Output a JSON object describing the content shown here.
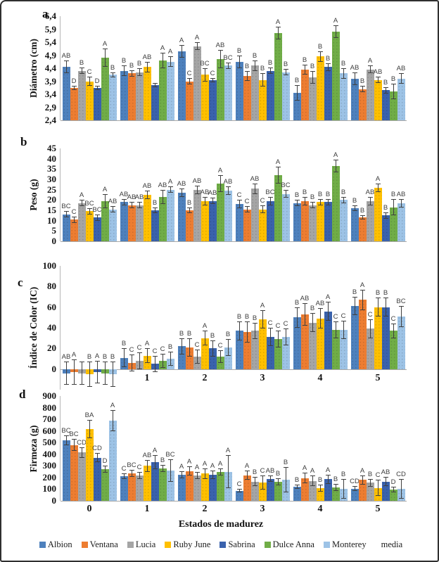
{
  "figure": {
    "xlabel": "Estados de madurez",
    "legend": {
      "items": [
        {
          "label": "Albion",
          "color": "#4e81bd"
        },
        {
          "label": "Ventana",
          "color": "#ed7d31"
        },
        {
          "label": "Lucia",
          "color": "#a5a5a5"
        },
        {
          "label": "Ruby June",
          "color": "#ffc000"
        },
        {
          "label": "Sabrina",
          "color": "#3a62ad"
        },
        {
          "label": "Dulce Anna",
          "color": "#70ad47"
        },
        {
          "label": "Monterey",
          "color": "#9dc3e6"
        },
        {
          "label": "media",
          "color": ""
        }
      ]
    }
  },
  "chart_data": [
    {
      "type": "bar",
      "panel": "a",
      "ylabel": "Diámetro (cm)",
      "ylim": [
        2.4,
        6.4
      ],
      "ytick_values": [
        6.4,
        5.9,
        5.4,
        4.9,
        4.4,
        3.9,
        3.4,
        2.9,
        2.4
      ],
      "ytick_labels": [
        "6,4",
        "5,9",
        "5,4",
        "4,9",
        "4,4",
        "3,9",
        "3,4",
        "2,9",
        "2,4"
      ],
      "categories": [
        "0",
        "1",
        "2",
        "3",
        "4",
        "5"
      ],
      "category_labels": [
        "",
        "",
        "",
        "",
        "",
        ""
      ],
      "series": [
        {
          "name": "Albion",
          "values": [
            4.45,
            4.3,
            5.05,
            4.65,
            3.45,
            4.0
          ],
          "errors": [
            0.25,
            0.2,
            0.25,
            0.25,
            0.3,
            0.25
          ],
          "letters": [
            "AB",
            "B",
            "A",
            "B",
            "B",
            "AB"
          ]
        },
        {
          "name": "Ventana",
          "values": [
            3.65,
            4.2,
            3.9,
            4.1,
            4.35,
            3.6
          ],
          "errors": [
            0.08,
            0.12,
            0.12,
            0.18,
            0.18,
            0.12
          ],
          "letters": [
            "D",
            "B",
            "C",
            "B",
            "B",
            "B"
          ]
        },
        {
          "name": "Lucia",
          "values": [
            4.3,
            4.25,
            5.25,
            4.5,
            4.05,
            4.35
          ],
          "errors": [
            0.12,
            0.15,
            0.15,
            0.2,
            0.25,
            0.15
          ],
          "letters": [
            "B",
            "B",
            "A",
            "B",
            "B",
            "A"
          ]
        },
        {
          "name": "Ruby June",
          "values": [
            3.9,
            4.45,
            4.15,
            3.95,
            4.85,
            3.95
          ],
          "errors": [
            0.18,
            0.2,
            0.25,
            0.25,
            0.2,
            0.12
          ],
          "letters": [
            "C",
            "AB",
            "BC",
            "B",
            "B",
            "AB"
          ]
        },
        {
          "name": "Sabrina",
          "values": [
            3.65,
            3.75,
            3.95,
            4.3,
            4.45,
            3.55
          ],
          "errors": [
            0.08,
            0.08,
            0.08,
            0.12,
            0.15,
            0.12
          ],
          "letters": [
            "D",
            "",
            "C",
            "B",
            "B",
            "B"
          ]
        },
        {
          "name": "Dulce Anna",
          "values": [
            4.8,
            4.7,
            4.75,
            5.75,
            5.8,
            3.5
          ],
          "errors": [
            0.35,
            0.3,
            0.35,
            0.25,
            0.25,
            0.3
          ],
          "letters": [
            "A",
            "A",
            "AB",
            "A",
            "A",
            "B"
          ]
        },
        {
          "name": "Monterey",
          "values": [
            4.15,
            4.65,
            4.5,
            4.25,
            4.2,
            4.0
          ],
          "errors": [
            0.1,
            0.2,
            0.12,
            0.12,
            0.2,
            0.2
          ],
          "letters": [
            "B",
            "A",
            "BC",
            "B",
            "B",
            "AB"
          ]
        }
      ]
    },
    {
      "type": "bar",
      "panel": "b",
      "ylabel": "Peso (g)",
      "ylim": [
        0,
        45
      ],
      "ytick_values": [
        45,
        40,
        35,
        30,
        25,
        20,
        15,
        10,
        5,
        0
      ],
      "ytick_labels": [
        "45",
        "40",
        "35",
        "30",
        "25",
        "20",
        "15",
        "10",
        "5",
        "0"
      ],
      "categories": [
        "0",
        "1",
        "2",
        "3",
        "4",
        "5"
      ],
      "category_labels": [
        "",
        "",
        "",
        "",
        "",
        ""
      ],
      "series": [
        {
          "name": "Albion",
          "values": [
            13,
            19,
            23.5,
            18,
            18.5,
            16
          ],
          "errors": [
            1.5,
            1.5,
            2,
            2,
            1.5,
            1.5
          ],
          "letters": [
            "BC",
            "AB",
            "AB",
            "C",
            "B",
            "B"
          ]
        },
        {
          "name": "Ventana",
          "values": [
            10.5,
            17.5,
            15,
            15.5,
            19.5,
            11.5
          ],
          "errors": [
            1.5,
            1.5,
            1.5,
            1.5,
            2,
            1
          ],
          "letters": [
            "C",
            "AB",
            "B",
            "C",
            "B",
            "B"
          ]
        },
        {
          "name": "Lucia",
          "values": [
            18.5,
            17.5,
            25,
            25.5,
            17.5,
            19.5
          ],
          "errors": [
            1.5,
            1.5,
            2,
            2.5,
            1.5,
            2
          ],
          "letters": [
            "A",
            "AB",
            "AB",
            "AB",
            "B",
            "AB"
          ]
        },
        {
          "name": "Ruby June",
          "values": [
            14.5,
            22.5,
            19.5,
            15.5,
            19,
            26
          ],
          "errors": [
            1.5,
            2,
            2,
            2,
            1.5,
            2
          ],
          "letters": [
            "BC",
            "AB",
            "AB",
            "C",
            "B",
            "A"
          ]
        },
        {
          "name": "Sabrina",
          "values": [
            11.5,
            15,
            19.5,
            19.5,
            19,
            12.5
          ],
          "errors": [
            1.5,
            1.5,
            1.5,
            2,
            1.5,
            1.5
          ],
          "letters": [
            "BC",
            "B",
            "AB",
            "BC",
            "B",
            "B"
          ]
        },
        {
          "name": "Dulce Anna",
          "values": [
            19.5,
            21.5,
            28,
            32,
            36.5,
            16.5
          ],
          "errors": [
            3.5,
            3.5,
            4,
            4,
            3,
            4
          ],
          "letters": [
            "A",
            "AB",
            "A",
            "A",
            "A",
            "B"
          ]
        },
        {
          "name": "Monterey",
          "values": [
            15.5,
            25,
            24.5,
            23,
            20,
            18.5
          ],
          "errors": [
            1.5,
            1.5,
            2,
            2,
            1.5,
            2
          ],
          "letters": [
            "AB",
            "A",
            "AB",
            "BC",
            "B",
            "AB"
          ]
        }
      ]
    },
    {
      "type": "bar",
      "panel": "c",
      "ylabel": "Índice de Color (IC)",
      "ylim": [
        -20,
        100
      ],
      "ytick_values": [
        100,
        80,
        60,
        40,
        20,
        0
      ],
      "ytick_labels": [
        "100",
        "80",
        "60",
        "40",
        "20",
        "0"
      ],
      "categories": [
        "0",
        "1",
        "2",
        "3",
        "4",
        "5"
      ],
      "category_labels": [
        "",
        "1",
        "2",
        "3",
        "4",
        "5"
      ],
      "series": [
        {
          "name": "Albion",
          "values": [
            -4,
            11,
            22,
            37,
            50,
            61
          ],
          "errors": [
            11,
            9,
            8,
            9,
            10,
            9
          ],
          "letters": [
            "AB",
            "B",
            "B",
            "B",
            "B",
            "B"
          ]
        },
        {
          "name": "Ventana",
          "values": [
            -3,
            6,
            21,
            36,
            53,
            67
          ],
          "errors": [
            12,
            8,
            9,
            10,
            11,
            10
          ],
          "letters": [
            "A",
            "C",
            "B",
            "B",
            "AB",
            "A"
          ]
        },
        {
          "name": "Lucia",
          "values": [
            -4,
            8,
            12,
            37,
            45,
            39
          ],
          "errors": [
            11,
            8,
            7,
            8,
            9,
            9
          ],
          "letters": [
            "",
            "C",
            "C",
            "B",
            "B",
            "C"
          ]
        },
        {
          "name": "Ruby June",
          "values": [
            -5,
            13,
            30,
            48,
            49,
            60
          ],
          "errors": [
            12,
            7,
            7,
            9,
            10,
            9
          ],
          "letters": [
            "B",
            "A",
            "A",
            "A",
            "AB",
            "B"
          ]
        },
        {
          "name": "Sabrina",
          "values": [
            -3,
            5,
            20,
            31,
            56,
            60
          ],
          "errors": [
            11,
            8,
            8,
            9,
            9,
            9
          ],
          "letters": [
            "A",
            "C",
            "B",
            "C",
            "A",
            "B"
          ]
        },
        {
          "name": "Dulce Anna",
          "values": [
            -4,
            8,
            12,
            29,
            38,
            37
          ],
          "errors": [
            11,
            7,
            6,
            8,
            8,
            7
          ],
          "letters": [
            "B",
            "C",
            "C",
            "C",
            "C",
            "C"
          ]
        },
        {
          "name": "Monterey",
          "values": [
            -5,
            10,
            21,
            31,
            38,
            51
          ],
          "errors": [
            12,
            7,
            8,
            8,
            9,
            10
          ],
          "letters": [
            "B",
            "B",
            "B",
            "C",
            "C",
            "BC"
          ]
        }
      ]
    },
    {
      "type": "bar",
      "panel": "d",
      "ylabel": "Firmeza (g)",
      "ylim": [
        0,
        900
      ],
      "ytick_values": [
        900,
        800,
        700,
        600,
        500,
        400,
        300,
        200,
        100,
        0
      ],
      "ytick_labels": [
        "900",
        "800",
        "700",
        "600",
        "500",
        "400",
        "300",
        "200",
        "100",
        "0"
      ],
      "categories": [
        "0",
        "1",
        "2",
        "3",
        "4",
        "5"
      ],
      "category_labels": [
        "0",
        "1",
        "2",
        "3",
        "4",
        "5"
      ],
      "series": [
        {
          "name": "Albion",
          "values": [
            520,
            210,
            225,
            85,
            120,
            105
          ],
          "errors": [
            40,
            25,
            30,
            15,
            20,
            20
          ],
          "letters": [
            "BC",
            "C",
            "A",
            "C",
            "B",
            "CD"
          ]
        },
        {
          "name": "Ventana",
          "values": [
            480,
            235,
            255,
            220,
            195,
            180
          ],
          "errors": [
            50,
            30,
            40,
            40,
            45,
            40
          ],
          "letters": [
            "BC",
            "BC",
            "A",
            "A",
            "A",
            "A"
          ]
        },
        {
          "name": "Lucia",
          "values": [
            415,
            215,
            215,
            165,
            170,
            155
          ],
          "errors": [
            45,
            30,
            30,
            40,
            45,
            35
          ],
          "letters": [
            "CD",
            "C",
            "A",
            "B",
            "A",
            "B"
          ]
        },
        {
          "name": "Ruby June",
          "values": [
            615,
            300,
            235,
            155,
            110,
            110
          ],
          "errors": [
            80,
            50,
            45,
            60,
            30,
            70
          ],
          "letters": [
            "BA",
            "AB",
            "A",
            "C",
            "B",
            "C"
          ]
        },
        {
          "name": "Sabrina",
          "values": [
            370,
            330,
            225,
            190,
            185,
            165
          ],
          "errors": [
            40,
            60,
            35,
            30,
            40,
            40
          ],
          "letters": [
            "CD",
            "A",
            "A",
            "AB",
            "A",
            "AB"
          ]
        },
        {
          "name": "Dulce Anna",
          "values": [
            270,
            280,
            245,
            165,
            115,
            95
          ],
          "errors": [
            30,
            30,
            30,
            30,
            30,
            25
          ],
          "letters": [
            "D",
            "B",
            "A",
            "B",
            "B",
            "D"
          ]
        },
        {
          "name": "Monterey",
          "values": [
            690,
            260,
            250,
            180,
            105,
            105
          ],
          "errors": [
            90,
            95,
            140,
            110,
            85,
            85
          ],
          "letters": [
            "A",
            "BC",
            "A",
            "B",
            "B",
            "CD"
          ]
        }
      ]
    }
  ]
}
